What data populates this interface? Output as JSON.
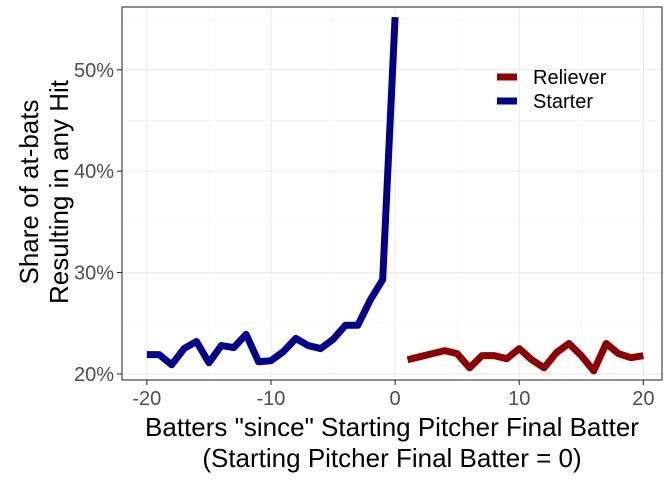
{
  "chart_data": {
    "type": "line",
    "title": "",
    "xlabel_line1": "Batters \"since\" Starting Pitcher Final Batter",
    "xlabel_line2": "(Starting Pitcher Final Batter = 0)",
    "ylabel_line1": "Share of at-bats",
    "ylabel_line2": "Resulting in any Hit",
    "xlim": [
      -22,
      21.5
    ],
    "ylim": [
      19.4,
      56.2
    ],
    "x_ticks": [
      -20,
      -10,
      0,
      10,
      20
    ],
    "x_tick_labels": [
      "-20",
      "-10",
      "0",
      "10",
      "20"
    ],
    "y_ticks": [
      20,
      30,
      40,
      50
    ],
    "y_tick_labels": [
      "20%",
      "30%",
      "40%",
      "50%"
    ],
    "grid": true,
    "legend_position": "top-right",
    "series": [
      {
        "name": "Reliever",
        "color": "#8b0000",
        "x": [
          1,
          2,
          3,
          4,
          5,
          6,
          7,
          8,
          9,
          10,
          11,
          12,
          13,
          14,
          15,
          16,
          17,
          18,
          19,
          20
        ],
        "y": [
          21.4,
          21.7,
          22.0,
          22.3,
          22.0,
          20.6,
          21.8,
          21.8,
          21.5,
          22.5,
          21.4,
          20.6,
          22.1,
          23.0,
          21.8,
          20.3,
          23.0,
          22.0,
          21.6,
          21.8
        ]
      },
      {
        "name": "Starter",
        "color": "#00008b",
        "x": [
          -20,
          -19,
          -18,
          -17,
          -16,
          -15,
          -14,
          -13,
          -12,
          -11,
          -10,
          -9,
          -8,
          -7,
          -6,
          -5,
          -4,
          -3,
          -2,
          -1,
          0
        ],
        "y": [
          21.9,
          21.9,
          20.9,
          22.5,
          23.2,
          21.1,
          22.8,
          22.6,
          23.9,
          21.2,
          21.3,
          22.2,
          23.5,
          22.8,
          22.5,
          23.4,
          24.8,
          24.8,
          27.3,
          29.3,
          55.2
        ]
      }
    ]
  }
}
